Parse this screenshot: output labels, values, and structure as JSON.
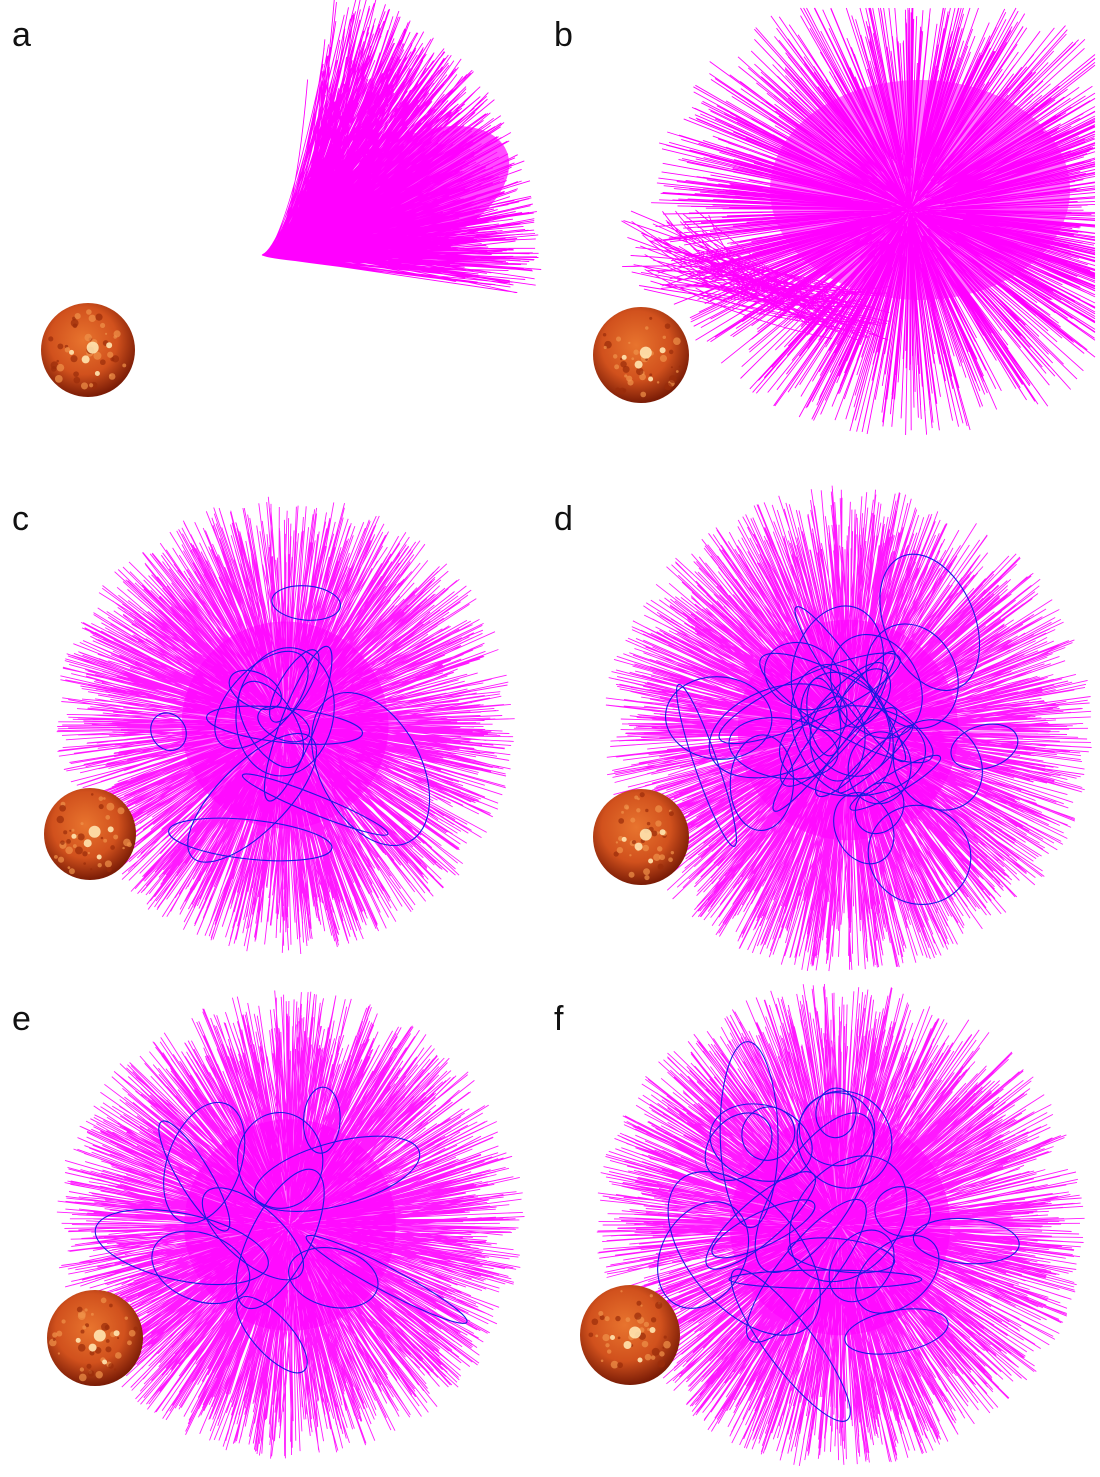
{
  "colors": {
    "field_line_open": "#ff00ff",
    "field_line_closed": "#1a1ae0",
    "sun_core": "#d1511d",
    "sun_edge": "#7a1c06",
    "sun_bright": "#ffe6b0",
    "background": "#ffffff"
  },
  "panels": [
    {
      "label": "a",
      "shape": "fan",
      "closed_loops": 0
    },
    {
      "label": "b",
      "shape": "cloud",
      "closed_loops": 0
    },
    {
      "label": "c",
      "shape": "sphere",
      "closed_loops": 14
    },
    {
      "label": "d",
      "shape": "sphere",
      "closed_loops": 30
    },
    {
      "label": "e",
      "shape": "sphere",
      "closed_loops": 12
    },
    {
      "label": "f",
      "shape": "sphere",
      "closed_loops": 22
    }
  ],
  "icons": {
    "sun": "sun-globe-image",
    "field_lines": "magnetic-field-lines"
  }
}
